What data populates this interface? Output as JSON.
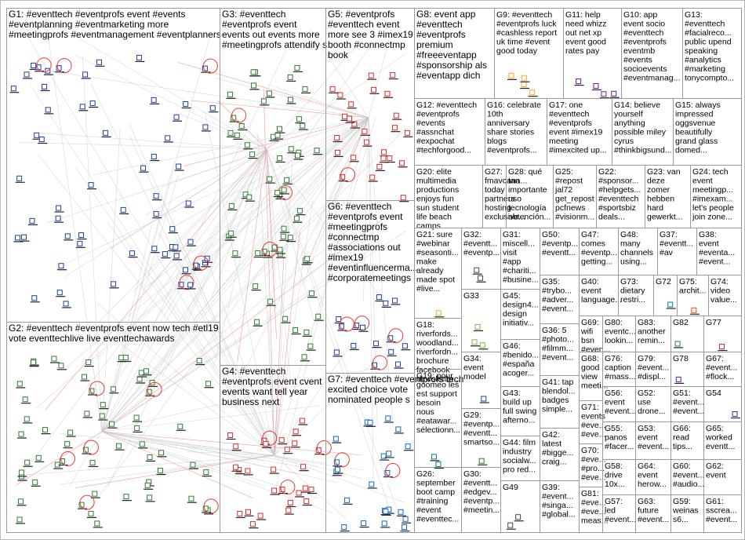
{
  "groups": [
    {
      "lines": [
        "G1: #eventtech #eventprofs event #events",
        "#eventplanning #eventmarketing more",
        "#meetingprofs #eventmanagement #eventplanners"
      ]
    },
    {
      "lines": [
        "G3: #eventtech",
        "#eventprofs event",
        "events out events more",
        "#meetingprofs attendify s"
      ]
    },
    {
      "lines": [
        "G5: #eventprofs",
        "#eventtech event",
        "more see 3 #imex19",
        "booth #connectmp",
        "book"
      ]
    },
    {
      "lines": [
        "G8: event app",
        "#eventtech",
        "#eventprofs",
        "premium",
        "#freeeventapp",
        "#sponsorship als",
        "#eventapp dich"
      ]
    },
    {
      "lines": [
        "G9: #eventtech",
        "#eventprofs luck",
        "#cashless report",
        "uk time #event",
        "good today"
      ]
    },
    {
      "lines": [
        "G11: help",
        "need whizz",
        "out net xp",
        "event good",
        "rates pay"
      ]
    },
    {
      "lines": [
        "G10: app",
        "event socio",
        "#eventtech",
        "#eventprofs",
        "eventmb",
        "#events",
        "socioevents",
        "#eventmanag..."
      ]
    },
    {
      "lines": [
        "G13:",
        "#eventtech",
        "#facialreco...",
        "public upend",
        "speaking",
        "#analytics",
        "#marketing",
        "tonycompto..."
      ]
    },
    {
      "lines": [
        "G12: #eventtech",
        "#eventprofs",
        "#events",
        "#assnchat",
        "#expochat",
        "#techforgood..."
      ]
    },
    {
      "lines": [
        "G16: celebrate",
        "10th",
        "anniversary",
        "share stories",
        "blogs",
        "#eventprofs..."
      ]
    },
    {
      "lines": [
        "G17: one",
        "#eventtech",
        "#eventprofs",
        "event #imex19",
        "meeting",
        "#imexcited up..."
      ]
    },
    {
      "lines": [
        "G14: believe",
        "yourself",
        "anything",
        "possible miley",
        "cyrus",
        "#thinkbigsund..."
      ]
    },
    {
      "lines": [
        "G15: always",
        "impressed",
        "oggsvenue",
        "beautifully",
        "grand glass",
        "domed..."
      ]
    },
    {
      "lines": [
        "G20: elite",
        "multimedia",
        "productions",
        "enjoys fun",
        "sun student",
        "life beach",
        "camps"
      ]
    },
    {
      "lines": [
        "G27:",
        "fmavcana...",
        "today",
        "partners",
        "hosting",
        "exclusive..."
      ]
    },
    {
      "lines": [
        "G28: qué",
        "tan",
        "importante",
        "uso",
        "tecnología",
        "obtención..."
      ]
    },
    {
      "lines": [
        "G25:",
        "#repost",
        "jal72",
        "get_repost",
        "pcfnews",
        "#visionm..."
      ]
    },
    {
      "lines": [
        "G22:",
        "#sponsor...",
        "#helpgets...",
        "#eventtech",
        "#sportsbiz",
        "deals..."
      ]
    },
    {
      "lines": [
        "G23: van",
        "deze",
        "zomer",
        "hebben",
        "hard",
        "gewerkt..."
      ]
    },
    {
      "lines": [
        "G24: tech",
        "event",
        "meetingp...",
        "#imexam...",
        "let's people",
        "join zone..."
      ]
    },
    {
      "lines": [
        "G6: #eventtech",
        "#eventprofs event",
        "#meetingprofs",
        "#connectmp",
        "#associations out",
        "#imex19",
        "#eventinfluencerma...",
        "#corporatemeetings"
      ]
    },
    {
      "lines": [
        "G2: #eventtech #eventprofs event now tech #etl19",
        "vote eventtechlive live eventtechawards"
      ]
    },
    {
      "lines": [
        "G4: #eventtech",
        "#eventprofs event cvent",
        "events want tell year",
        "business next"
      ]
    },
    {
      "lines": [
        "G7: #eventtech #eventprofs tech",
        "excited choice vote",
        "nominated people s"
      ]
    },
    {
      "lines": [
        "G21: sure",
        "#webinar",
        "#seasonti...",
        "make",
        "already",
        "made spot",
        "#live..."
      ]
    },
    {
      "lines": [
        "G18:",
        "riverfords...",
        "woodland...",
        "riverfordn...",
        "brochure",
        "facebook",
        "newsletter..."
      ]
    },
    {
      "lines": [
        "G19: pour",
        "goomeo les",
        "est support",
        "besoin",
        "nous",
        "#eatawar...",
        "sélectionn..."
      ]
    },
    {
      "lines": [
        "G26:",
        "september",
        "boot camp",
        "#training",
        "#event",
        "#eventtec..."
      ]
    },
    {
      "lines": [
        "G32:",
        "#eventt...",
        "#eventp..."
      ]
    },
    {
      "lines": [
        "G33"
      ]
    },
    {
      "lines": [
        "G34:",
        "event",
        "model"
      ]
    },
    {
      "lines": [
        "G29:",
        "#eventp...",
        "#eventt...",
        "smartso..."
      ]
    },
    {
      "lines": [
        "G30:",
        "#eventt...",
        "#edgev...",
        "#eventp...",
        "#meetin..."
      ]
    },
    {
      "lines": [
        "G31:",
        "miscell...",
        "visit",
        "#app",
        "#chariti...",
        "#busine..."
      ]
    },
    {
      "lines": [
        "G45:",
        "design4...",
        "design",
        "initiativ..."
      ]
    },
    {
      "lines": [
        "G46:",
        "#benido...",
        "#españa",
        "acoger..."
      ]
    },
    {
      "lines": [
        "G43:",
        "build up",
        "full swing",
        "afterno..."
      ]
    },
    {
      "lines": [
        "G44: film",
        "industry",
        "socialw...",
        "pro red..."
      ]
    },
    {
      "lines": [
        "G49"
      ]
    },
    {
      "lines": [
        "G50:",
        "#eventp...",
        "#eventt..."
      ]
    },
    {
      "lines": [
        "G35:",
        "#trybo...",
        "#adver...",
        "#event..."
      ]
    },
    {
      "lines": [
        "G36: 5",
        "#photo...",
        "#filmm...",
        "#event..."
      ]
    },
    {
      "lines": [
        "G41: tap",
        "blendol...",
        "badges",
        "simple..."
      ]
    },
    {
      "lines": [
        "G42:",
        "latest",
        "#bigge...",
        "craig..."
      ]
    },
    {
      "lines": [
        "G39:",
        "#event...",
        "#singa...",
        "#global..."
      ]
    },
    {
      "lines": [
        "G47:",
        "comes",
        "#eventp...",
        "getting..."
      ]
    },
    {
      "lines": [
        "G40:",
        "event",
        "language..."
      ]
    },
    {
      "lines": [
        "G69:",
        "wifi",
        "bsn",
        "#even..."
      ]
    },
    {
      "lines": [
        "G68:",
        "good",
        "view",
        "meeti..."
      ]
    },
    {
      "lines": [
        "G71:",
        "events",
        "#eve...",
        "#eve..."
      ]
    },
    {
      "lines": [
        "G70:",
        "#eve...",
        "#pro...",
        "#eve..."
      ]
    },
    {
      "lines": [
        "G81:",
        "#eve...",
        "#eve...",
        "meas..."
      ]
    },
    {
      "lines": [
        "G48:",
        "many",
        "channels",
        "using..."
      ]
    },
    {
      "lines": [
        "G73:",
        "dietary",
        "restri..."
      ]
    },
    {
      "lines": [
        "G37:",
        "#eventt...",
        "#av"
      ]
    },
    {
      "lines": [
        "G38:",
        "event",
        "#eventa...",
        "#event..."
      ]
    },
    {
      "lines": [
        "G72"
      ]
    },
    {
      "lines": [
        "G75:",
        "archit..."
      ]
    },
    {
      "lines": [
        "G74:",
        "video",
        "value..."
      ]
    },
    {
      "lines": [
        "G80:",
        "eventc...",
        "lookin..."
      ]
    },
    {
      "lines": [
        "G83:",
        "another",
        "remin..."
      ]
    },
    {
      "lines": [
        "G82"
      ]
    },
    {
      "lines": [
        "G77"
      ]
    },
    {
      "lines": [
        "G76:",
        "caption",
        "#mass..."
      ]
    },
    {
      "lines": [
        "G79:",
        "#event...",
        "#displ..."
      ]
    },
    {
      "lines": [
        "G78"
      ]
    },
    {
      "lines": [
        "G67:",
        "#event...",
        "#flock..."
      ]
    },
    {
      "lines": [
        "G56:",
        "event",
        "#event..."
      ]
    },
    {
      "lines": [
        "G52:",
        "use",
        "drone..."
      ]
    },
    {
      "lines": [
        "G51:",
        "#event...",
        "#event..."
      ]
    },
    {
      "lines": [
        "G54"
      ]
    },
    {
      "lines": [
        "G55:",
        "panos",
        "#facer..."
      ]
    },
    {
      "lines": [
        "G53:",
        "event",
        "#event..."
      ]
    },
    {
      "lines": [
        "G66:",
        "read",
        "tips..."
      ]
    },
    {
      "lines": [
        "G65:",
        "worked",
        "eventt..."
      ]
    },
    {
      "lines": [
        "G58:",
        "drive",
        "10x..."
      ]
    },
    {
      "lines": [
        "G64:",
        "event",
        "herow..."
      ]
    },
    {
      "lines": [
        "G60:",
        "#event...",
        "#audio..."
      ]
    },
    {
      "lines": [
        "G62:",
        "event"
      ]
    },
    {
      "lines": [
        "G57:",
        "led",
        "#event..."
      ]
    },
    {
      "lines": [
        "G63:",
        "future",
        "#event..."
      ]
    },
    {
      "lines": [
        "G59:",
        "weinas",
        "s6..."
      ]
    },
    {
      "lines": [
        "G61:",
        "sscrea...",
        "#event..."
      ]
    }
  ]
}
